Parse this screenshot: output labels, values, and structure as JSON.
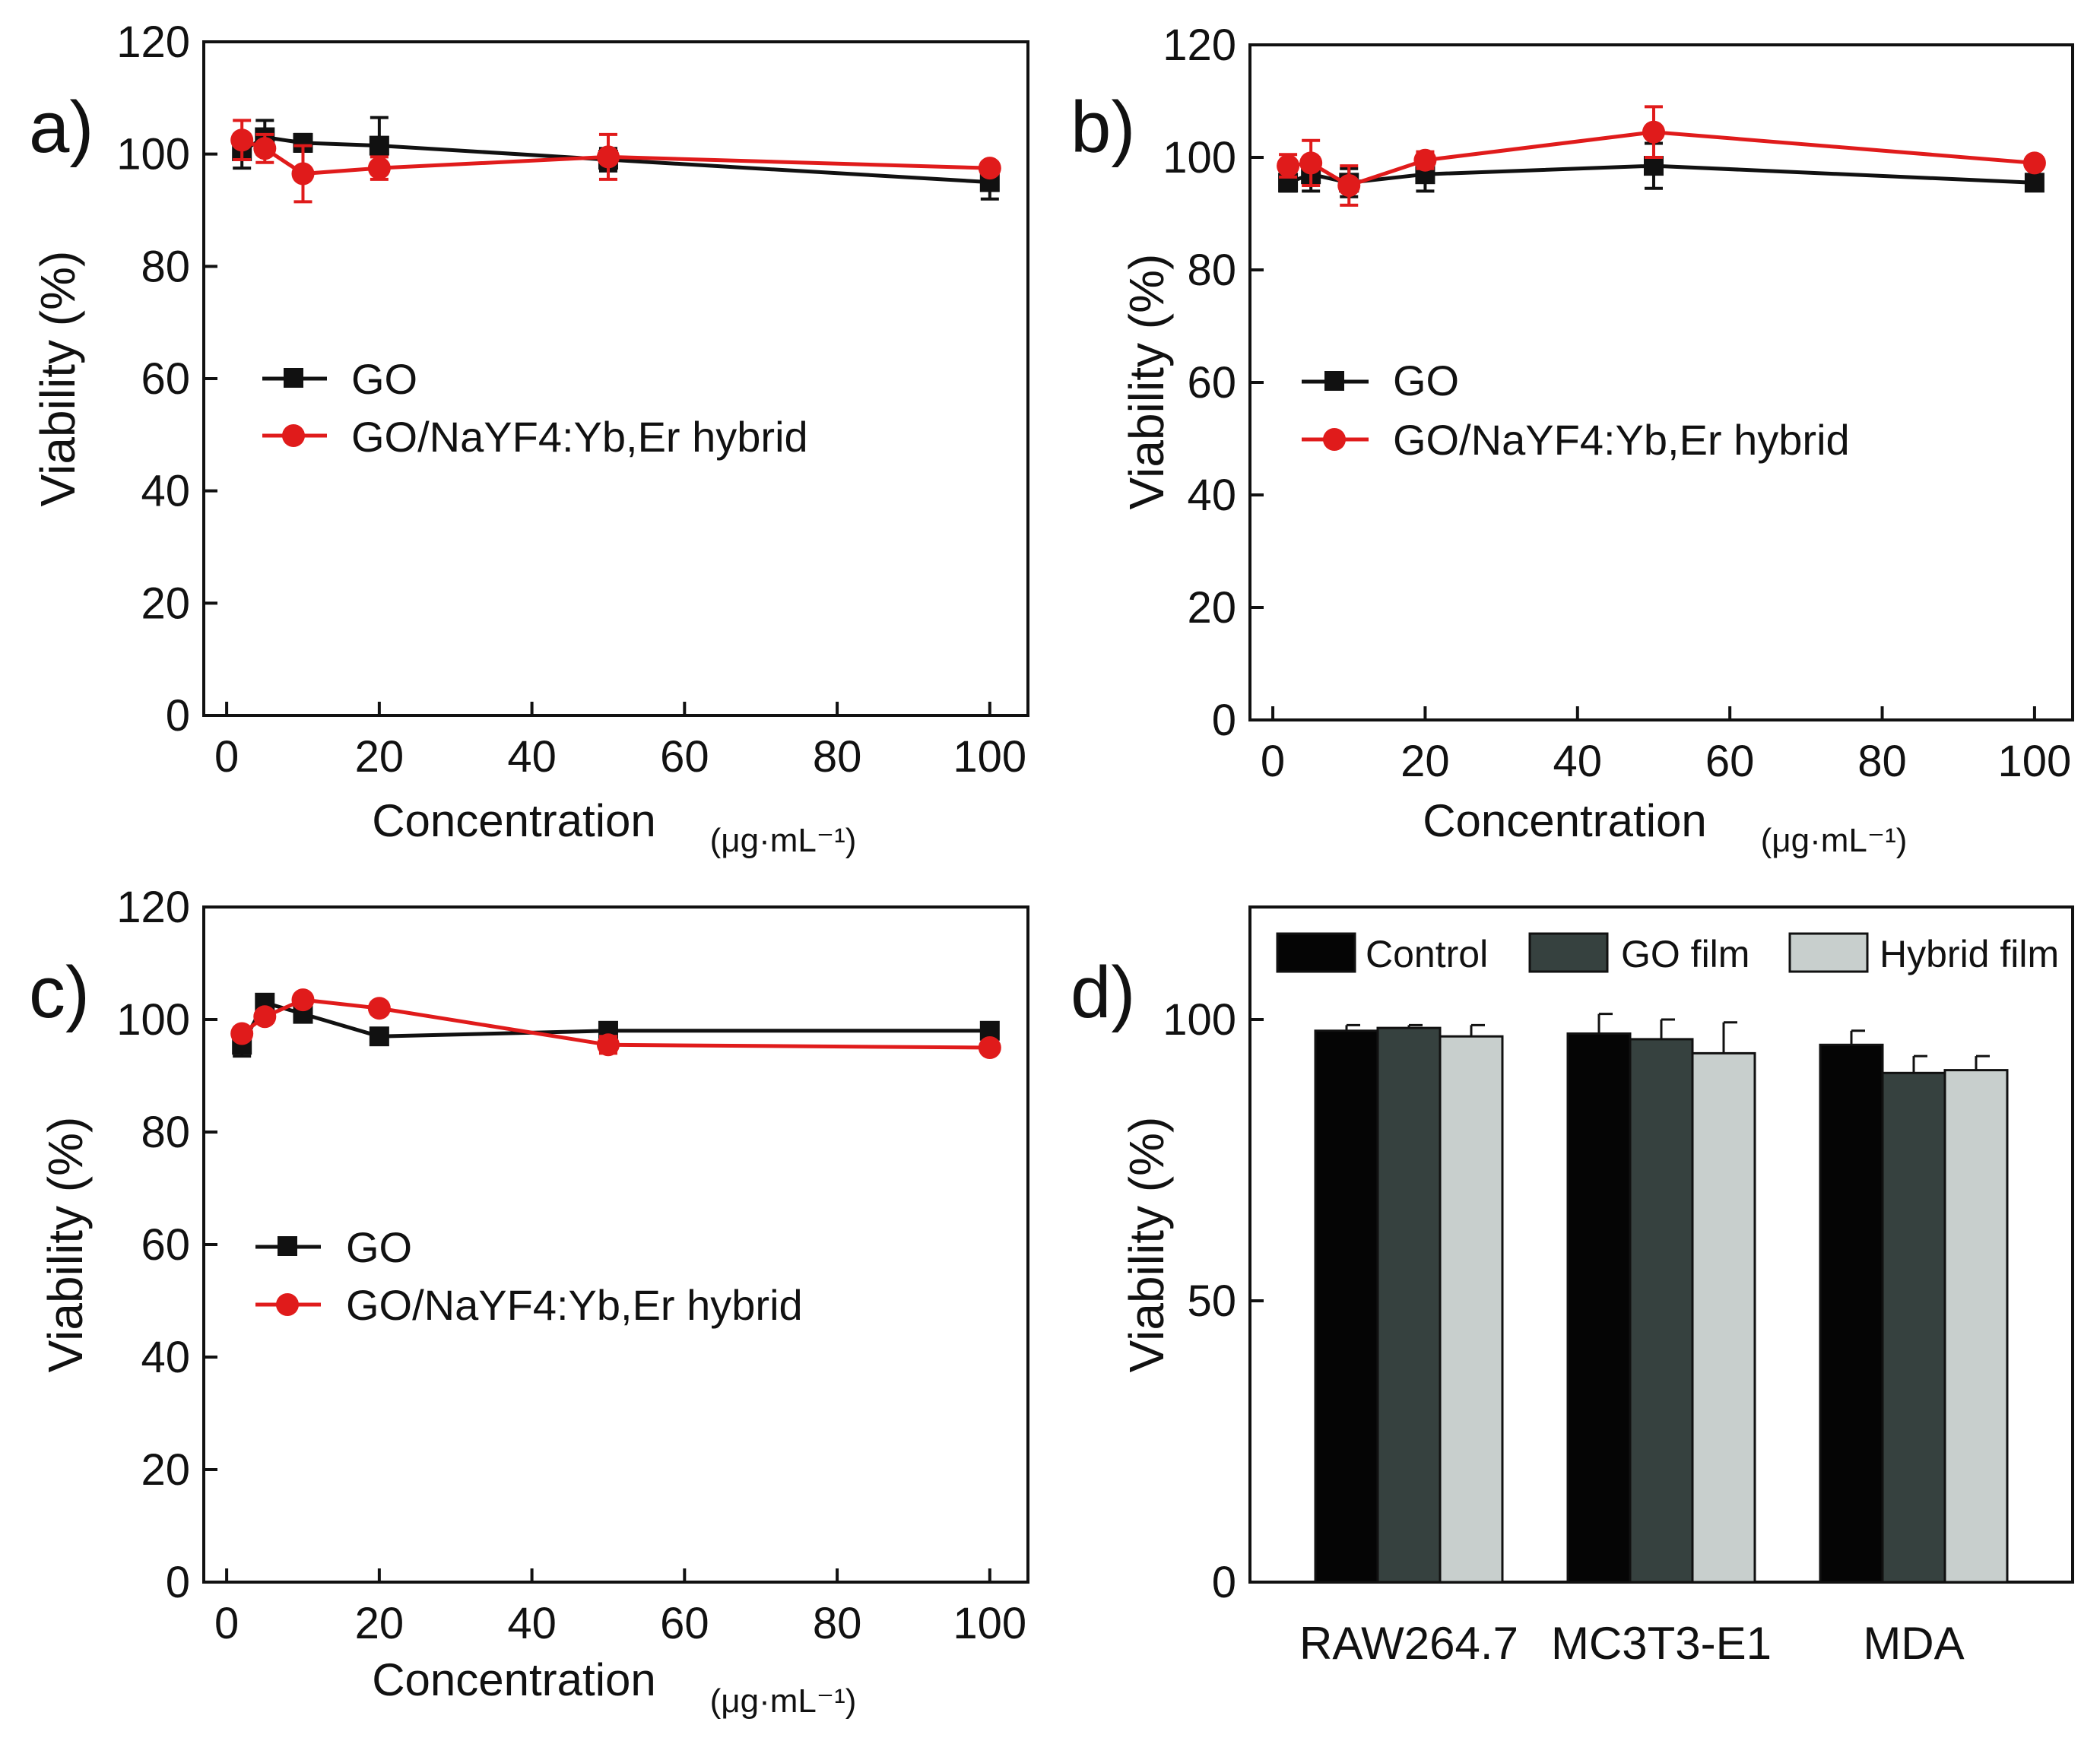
{
  "figure": {
    "colors": {
      "go": "#111111",
      "hybrid": "#e01b1b",
      "control": "#050505",
      "go_film": "#36413f",
      "hybrid_film": "#c8cfcd"
    }
  },
  "chart_data": [
    {
      "panel": "a)",
      "type": "line",
      "xlabel": "Concentration",
      "xunit": "(μg·mL⁻¹)",
      "ylabel": "Viability (%)",
      "xlim": [
        -3,
        105
      ],
      "ylim": [
        0,
        120
      ],
      "xticks": [
        0,
        20,
        40,
        60,
        80,
        100
      ],
      "yticks": [
        0,
        20,
        40,
        60,
        80,
        100,
        120
      ],
      "legend_position": "center-left",
      "series": [
        {
          "name": "GO",
          "marker": "square",
          "x": [
            2,
            5,
            10,
            20,
            50,
            100
          ],
          "y": [
            100.5,
            103,
            102,
            101.5,
            99,
            95
          ],
          "err": [
            3,
            3,
            1.5,
            5,
            2,
            3
          ]
        },
        {
          "name": "GO/NaYF4:Yb,Er hybrid",
          "marker": "circle",
          "x": [
            2,
            5,
            10,
            20,
            50,
            100
          ],
          "y": [
            102.5,
            101,
            96.5,
            97.5,
            99.5,
            97.5
          ],
          "err": [
            3.5,
            2.5,
            5,
            2,
            4,
            1
          ]
        }
      ]
    },
    {
      "panel": "b)",
      "type": "line",
      "xlabel": "Concentration",
      "xunit": "(μg·mL⁻¹)",
      "ylabel": "Viability (%)",
      "xlim": [
        -3,
        105
      ],
      "ylim": [
        0,
        120
      ],
      "xticks": [
        0,
        20,
        40,
        60,
        80,
        100
      ],
      "yticks": [
        0,
        20,
        40,
        60,
        80,
        100,
        120
      ],
      "legend_position": "center-left",
      "series": [
        {
          "name": "GO",
          "marker": "square",
          "x": [
            2,
            5,
            10,
            20,
            50,
            100
          ],
          "y": [
            95.5,
            97,
            95.5,
            97,
            98.5,
            95.5
          ],
          "err": [
            1.5,
            3,
            2.5,
            3,
            4,
            1
          ]
        },
        {
          "name": "GO/NaYF4:Yb,Er hybrid",
          "marker": "circle",
          "x": [
            2,
            5,
            10,
            20,
            50,
            100
          ],
          "y": [
            98.5,
            99,
            95,
            99.5,
            104.5,
            99
          ],
          "err": [
            2,
            4,
            3.5,
            1.5,
            4.5,
            1
          ]
        }
      ]
    },
    {
      "panel": "c)",
      "type": "line",
      "xlabel": "Concentration",
      "xunit": "(μg·mL⁻¹)",
      "ylabel": "Viability (%)",
      "xlim": [
        -3,
        105
      ],
      "ylim": [
        0,
        120
      ],
      "xticks": [
        0,
        20,
        40,
        60,
        80,
        100
      ],
      "yticks": [
        0,
        20,
        40,
        60,
        80,
        100,
        120
      ],
      "legend_position": "center-left",
      "series": [
        {
          "name": "GO",
          "marker": "square",
          "x": [
            2,
            5,
            10,
            20,
            50,
            100
          ],
          "y": [
            95.5,
            103,
            101,
            97,
            98,
            98
          ],
          "err": [
            2,
            1,
            1,
            1,
            1,
            1
          ]
        },
        {
          "name": "GO/NaYF4:Yb,Er hybrid",
          "marker": "circle",
          "x": [
            2,
            5,
            10,
            20,
            50,
            100
          ],
          "y": [
            97.5,
            100.5,
            103.5,
            102,
            95.5,
            95
          ],
          "err": [
            1,
            1,
            1,
            1,
            1.5,
            0.5
          ]
        }
      ]
    },
    {
      "panel": "d)",
      "type": "bar",
      "ylabel": "Viability (%)",
      "ylim": [
        0,
        120
      ],
      "yticks": [
        0,
        50,
        100
      ],
      "legend_position": "top",
      "categories": [
        "RAW264.7",
        "MC3T3-E1",
        "MDA"
      ],
      "series": [
        {
          "name": "Control",
          "values": [
            98,
            97.5,
            95.5
          ],
          "err": [
            1,
            3.5,
            2.5
          ]
        },
        {
          "name": "GO film",
          "values": [
            98.5,
            96.5,
            90.5
          ],
          "err": [
            0.5,
            3.5,
            3
          ]
        },
        {
          "name": "Hybrid film",
          "values": [
            97,
            94,
            91
          ],
          "err": [
            2,
            5.5,
            2.5
          ]
        }
      ]
    }
  ]
}
